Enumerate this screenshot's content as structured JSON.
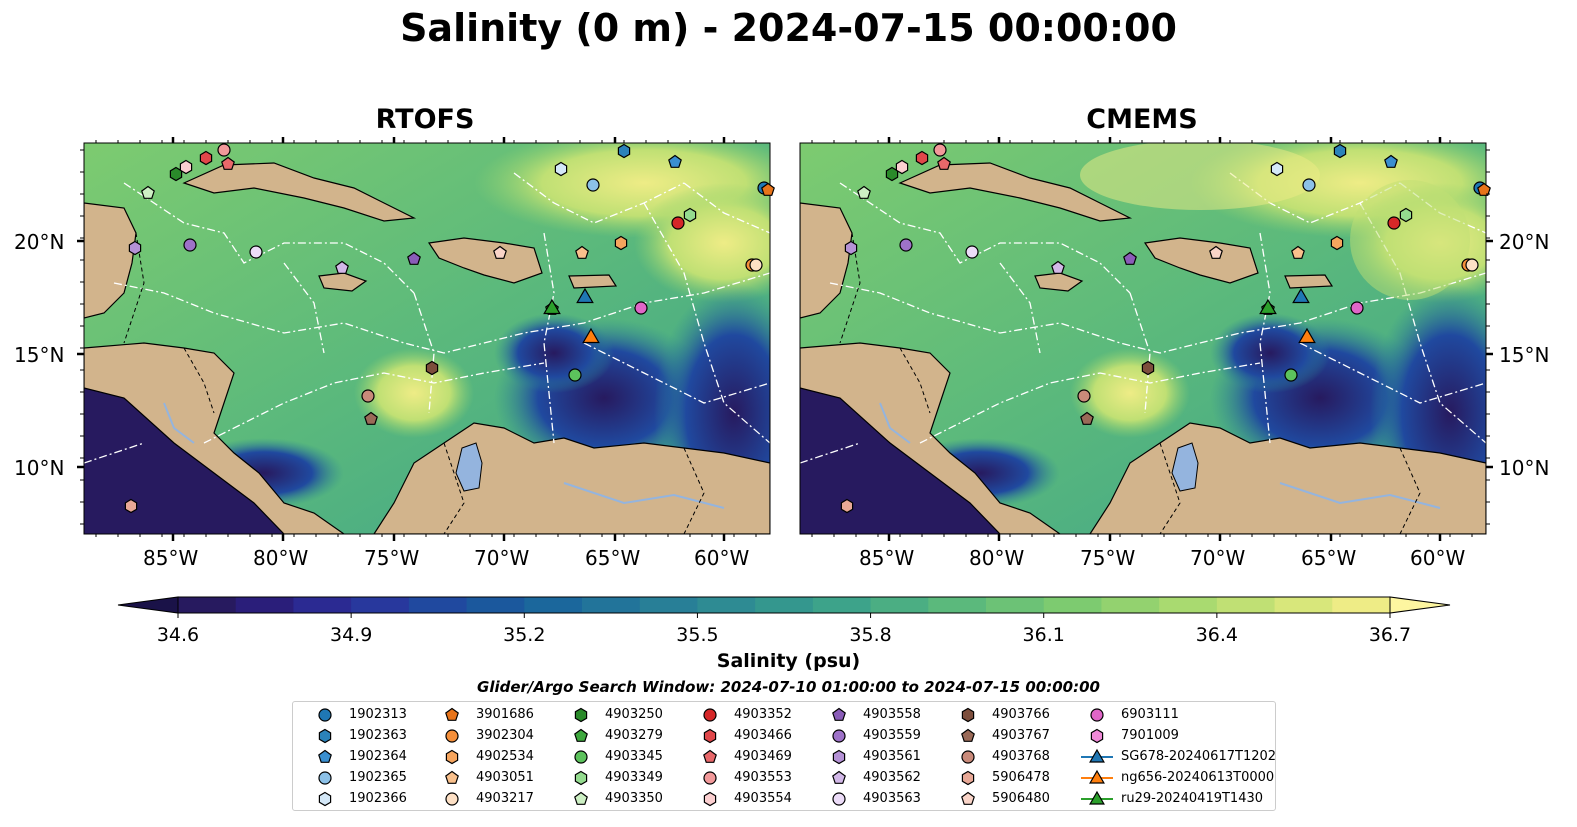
{
  "title": "Salinity (0 m) - 2024-07-15 00:00:00",
  "panels": [
    {
      "title": "RTOFS"
    },
    {
      "title": "CMEMS"
    }
  ],
  "lat_labels": [
    "20°N",
    "15°N",
    "10°N"
  ],
  "lon_labels": [
    "85°W",
    "80°W",
    "75°W",
    "70°W",
    "65°W",
    "60°W"
  ],
  "colorbar": {
    "label": "Salinity (psu)",
    "min": 34.6,
    "max": 36.7,
    "extend": "both",
    "ticks": [
      "34.6",
      "34.9",
      "35.2",
      "35.5",
      "35.8",
      "36.1",
      "36.4",
      "36.7"
    ],
    "colors": [
      "#271a5f",
      "#2a1e7a",
      "#2b2a92",
      "#28389d",
      "#20499f",
      "#1b589d",
      "#1b679c",
      "#22749a",
      "#287f97",
      "#2e8b93",
      "#34978e",
      "#3da38a",
      "#4bae83",
      "#5bb97c",
      "#6cc276",
      "#7dcb70",
      "#93d26f",
      "#a9da70",
      "#c0e074",
      "#d8e77b",
      "#eeec86"
    ]
  },
  "search_window": "Glider/Argo Search Window: 2024-07-10 01:00:00 to 2024-07-15 00:00:00",
  "colors": {
    "land": "#d2b48c",
    "ocean_mid": "#5bb97c",
    "ocean_low": "#271a5f",
    "ocean_high": "#eeec86",
    "lake": "#94b4de",
    "eez_line": "#ffffff"
  },
  "legend": [
    {
      "label": "1902313",
      "marker": "circle",
      "color": "#1f77b4"
    },
    {
      "label": "1902363",
      "marker": "hexagon",
      "color": "#2b83ba"
    },
    {
      "label": "1902364",
      "marker": "pentagon",
      "color": "#3a8fd0"
    },
    {
      "label": "1902365",
      "marker": "circle",
      "color": "#8cc1e8"
    },
    {
      "label": "1902366",
      "marker": "hexagon",
      "color": "#d4e8f8"
    },
    {
      "label": "3901686",
      "marker": "pentagon",
      "color": "#e8741a"
    },
    {
      "label": "3902304",
      "marker": "circle",
      "color": "#f58f3a"
    },
    {
      "label": "4902534",
      "marker": "hexagon",
      "color": "#f6a55e"
    },
    {
      "label": "4903051",
      "marker": "pentagon",
      "color": "#f9c08c"
    },
    {
      "label": "4903217",
      "marker": "circle",
      "color": "#fde0c5"
    },
    {
      "label": "4903250",
      "marker": "hexagon",
      "color": "#2a8a2a"
    },
    {
      "label": "4903279",
      "marker": "pentagon",
      "color": "#3ea83e"
    },
    {
      "label": "4903345",
      "marker": "circle",
      "color": "#5cc25c"
    },
    {
      "label": "4903349",
      "marker": "hexagon",
      "color": "#94db8f"
    },
    {
      "label": "4903350",
      "marker": "pentagon",
      "color": "#cdf0c4"
    },
    {
      "label": "4903352",
      "marker": "circle",
      "color": "#d62728"
    },
    {
      "label": "4903466",
      "marker": "hexagon",
      "color": "#e0474a"
    },
    {
      "label": "4903469",
      "marker": "pentagon",
      "color": "#e8686a"
    },
    {
      "label": "4903553",
      "marker": "circle",
      "color": "#f2999a"
    },
    {
      "label": "4903554",
      "marker": "hexagon",
      "color": "#fbcfd0"
    },
    {
      "label": "4903558",
      "marker": "pentagon",
      "color": "#8a5cb8"
    },
    {
      "label": "4903559",
      "marker": "circle",
      "color": "#9e72c8"
    },
    {
      "label": "4903561",
      "marker": "hexagon",
      "color": "#b592d6"
    },
    {
      "label": "4903562",
      "marker": "pentagon",
      "color": "#d2b8e8"
    },
    {
      "label": "4903563",
      "marker": "circle",
      "color": "#ecdcf8"
    },
    {
      "label": "4903766",
      "marker": "hexagon",
      "color": "#7d4e3c"
    },
    {
      "label": "4903767",
      "marker": "pentagon",
      "color": "#9a6a58"
    },
    {
      "label": "4903768",
      "marker": "circle",
      "color": "#c98a7a"
    },
    {
      "label": "5906478",
      "marker": "hexagon",
      "color": "#e8a896"
    },
    {
      "label": "5906480",
      "marker": "pentagon",
      "color": "#f9d4c8"
    },
    {
      "label": "6903111",
      "marker": "circle",
      "color": "#e066c8"
    },
    {
      "label": "7901009",
      "marker": "hexagon",
      "color": "#f08ad8"
    },
    {
      "label": "SG678-20240617T1202",
      "marker": "triangle-line",
      "color": "#1f77b4"
    },
    {
      "label": "ng656-20240613T0000",
      "marker": "triangle-line",
      "color": "#ff7f0e"
    },
    {
      "label": "ru29-20240419T1430",
      "marker": "triangle-line",
      "color": "#2ca02c"
    }
  ]
}
